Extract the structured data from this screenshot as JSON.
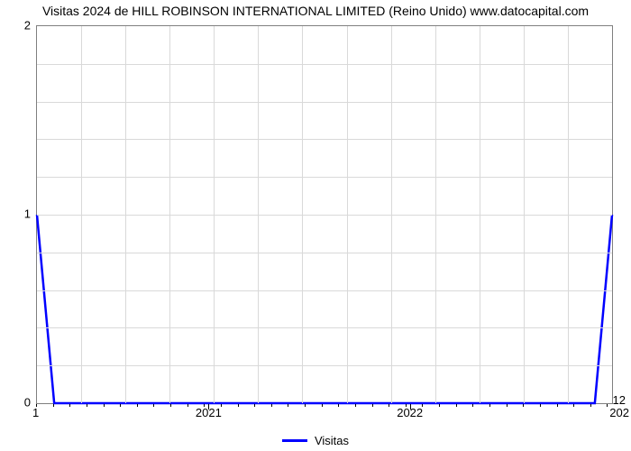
{
  "chart": {
    "type": "line",
    "title": "Visitas 2024 de HILL ROBINSON INTERNATIONAL LIMITED (Reino Unido) www.datocapital.com",
    "title_fontsize": 14,
    "title_color": "#000000",
    "background_color": "#ffffff",
    "plot_border_color": "#7f7f7f",
    "grid_color": "#d9d9d9",
    "xlim": [
      0,
      1
    ],
    "ylim": [
      0,
      2
    ],
    "y_ticks_major": [
      0,
      1,
      2
    ],
    "y_minor_count_between": 4,
    "x_ticks_major": [
      0.3,
      0.65
    ],
    "x_tick_labels": [
      "2021",
      "2022"
    ],
    "x_minor_step": 0.0292,
    "x_left_label": "1",
    "x_right_label": "12",
    "x_right_label_full": "202",
    "series": {
      "name": "Visitas",
      "color": "#0000ff",
      "line_width": 2.5,
      "values": [
        {
          "x": 0.0,
          "y": 1.0
        },
        {
          "x": 0.03,
          "y": 0.0
        },
        {
          "x": 0.97,
          "y": 0.0
        },
        {
          "x": 1.0,
          "y": 1.0
        }
      ]
    },
    "legend": {
      "label": "Visitas",
      "swatch_color": "#0000ff",
      "fontsize": 13
    },
    "tick_fontsize": 13
  }
}
